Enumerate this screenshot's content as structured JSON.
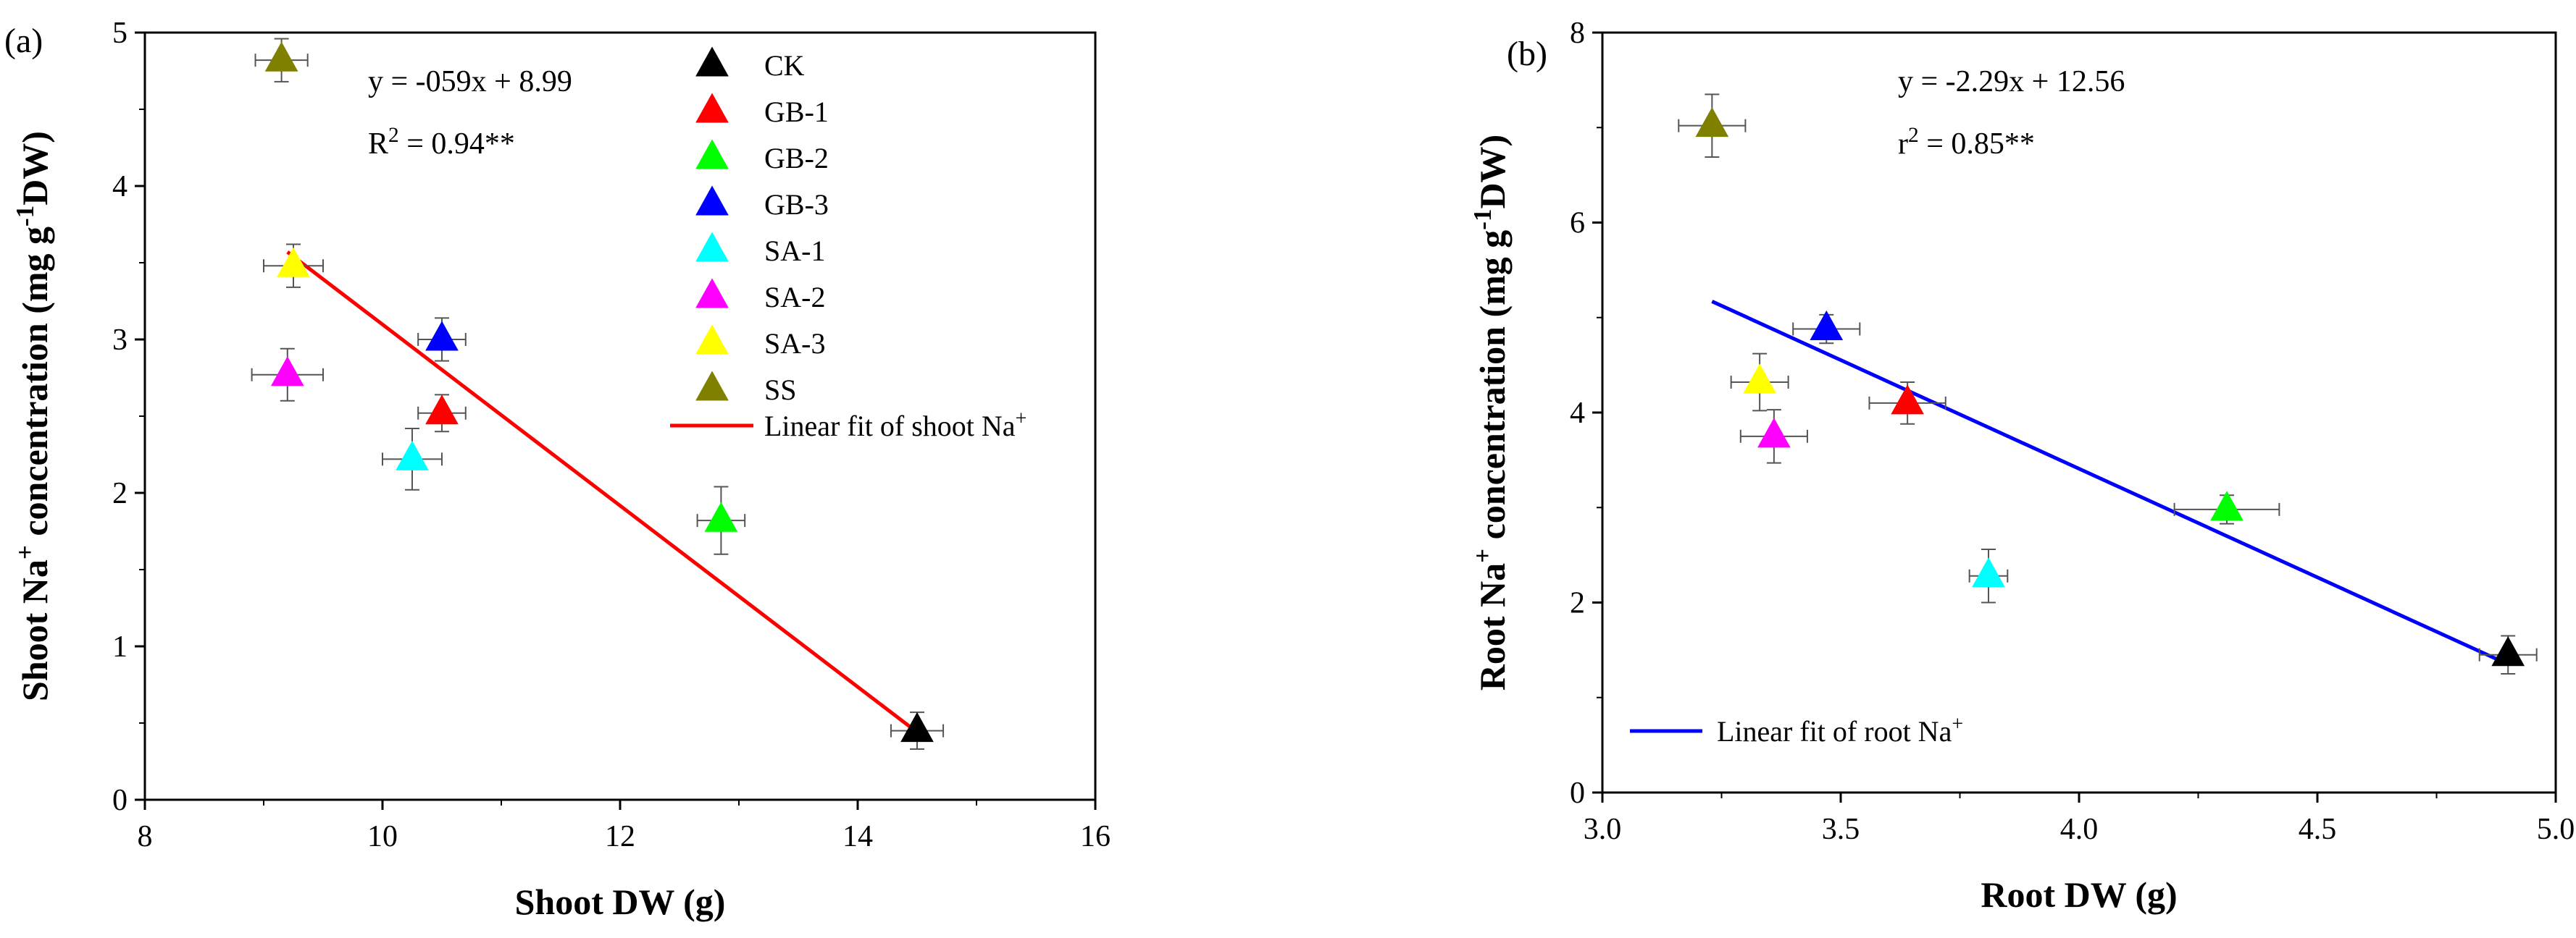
{
  "chart_data": [
    {
      "type": "scatter",
      "panel_label": "(a)",
      "xlabel": "Shoot DW (g)",
      "ylabel_parts": [
        "Shoot Na",
        "+",
        " concentration (mg g",
        "-1",
        "DW)"
      ],
      "xlim": [
        8,
        16
      ],
      "ylim": [
        0,
        5
      ],
      "xticks": [
        "8",
        "10",
        "12",
        "14",
        "16"
      ],
      "yticks": [
        "0",
        "1",
        "2",
        "3",
        "4",
        "5"
      ],
      "xtick_values": [
        8,
        10,
        12,
        14,
        16
      ],
      "ytick_values": [
        0,
        1,
        2,
        3,
        4,
        5
      ],
      "equation": "y = -059x + 8.99",
      "r2_parts": [
        "R",
        "2",
        " = 0.94**"
      ],
      "fit": {
        "label_parts": [
          "Linear fit of shoot Na",
          "+"
        ],
        "color": "#ff0000",
        "x": [
          9.2,
          14.45
        ],
        "y": [
          3.57,
          0.47
        ]
      },
      "series": [
        {
          "name": "CK",
          "color": "#000000",
          "x": 14.5,
          "y": 0.45,
          "xerr": 0.22,
          "yerr": 0.12
        },
        {
          "name": "GB-1",
          "color": "#ff0000",
          "x": 10.5,
          "y": 2.52,
          "xerr": 0.2,
          "yerr": 0.12
        },
        {
          "name": "GB-2",
          "color": "#00ff00",
          "x": 12.85,
          "y": 1.82,
          "xerr": 0.2,
          "yerr": 0.22
        },
        {
          "name": "GB-3",
          "color": "#0000ff",
          "x": 10.5,
          "y": 3.0,
          "xerr": 0.2,
          "yerr": 0.14
        },
        {
          "name": "SA-1",
          "color": "#00ffff",
          "x": 10.25,
          "y": 2.22,
          "xerr": 0.25,
          "yerr": 0.2
        },
        {
          "name": "SA-2",
          "color": "#ff00ff",
          "x": 9.2,
          "y": 2.77,
          "xerr": 0.3,
          "yerr": 0.17
        },
        {
          "name": "SA-3",
          "color": "#ffff00",
          "x": 9.25,
          "y": 3.48,
          "xerr": 0.25,
          "yerr": 0.14
        },
        {
          "name": "SS",
          "color": "#808000",
          "x": 9.15,
          "y": 4.82,
          "xerr": 0.22,
          "yerr": 0.14
        }
      ]
    },
    {
      "type": "scatter",
      "panel_label": "(b)",
      "xlabel": "Root DW (g)",
      "ylabel_parts": [
        "Root Na",
        "+",
        " concentration (mg g",
        "-1",
        "DW)"
      ],
      "xlim": [
        3.0,
        5.0
      ],
      "ylim": [
        0,
        8
      ],
      "xticks": [
        "3.0",
        "3.5",
        "4.0",
        "4.5",
        "5.0"
      ],
      "yticks": [
        "0",
        "2",
        "4",
        "6",
        "8"
      ],
      "xtick_values": [
        3.0,
        3.5,
        4.0,
        4.5,
        5.0
      ],
      "ytick_values": [
        0,
        2,
        4,
        6,
        8
      ],
      "equation": "y = -2.29x + 12.56",
      "r2_parts": [
        "r",
        "2",
        " = 0.85**"
      ],
      "fit": {
        "label_parts": [
          "Linear fit of root Na",
          "+"
        ],
        "color": "#0000ff",
        "x": [
          3.23,
          4.9
        ],
        "y": [
          5.17,
          1.35
        ]
      },
      "series": [
        {
          "name": "CK",
          "color": "#000000",
          "x": 4.9,
          "y": 1.45,
          "xerr": 0.06,
          "yerr": 0.2
        },
        {
          "name": "GB-1",
          "color": "#ff0000",
          "x": 3.64,
          "y": 4.1,
          "xerr": 0.08,
          "yerr": 0.22
        },
        {
          "name": "GB-2",
          "color": "#00ff00",
          "x": 4.31,
          "y": 2.98,
          "xerr": 0.11,
          "yerr": 0.15
        },
        {
          "name": "GB-3",
          "color": "#0000ff",
          "x": 3.47,
          "y": 4.88,
          "xerr": 0.07,
          "yerr": 0.15
        },
        {
          "name": "SA-1",
          "color": "#00ffff",
          "x": 3.81,
          "y": 2.28,
          "xerr": 0.04,
          "yerr": 0.28
        },
        {
          "name": "SA-2",
          "color": "#ff00ff",
          "x": 3.36,
          "y": 3.75,
          "xerr": 0.07,
          "yerr": 0.28
        },
        {
          "name": "SA-3",
          "color": "#ffff00",
          "x": 3.33,
          "y": 4.32,
          "xerr": 0.06,
          "yerr": 0.3
        },
        {
          "name": "SS",
          "color": "#808000",
          "x": 3.23,
          "y": 7.02,
          "xerr": 0.07,
          "yerr": 0.33
        }
      ]
    }
  ]
}
